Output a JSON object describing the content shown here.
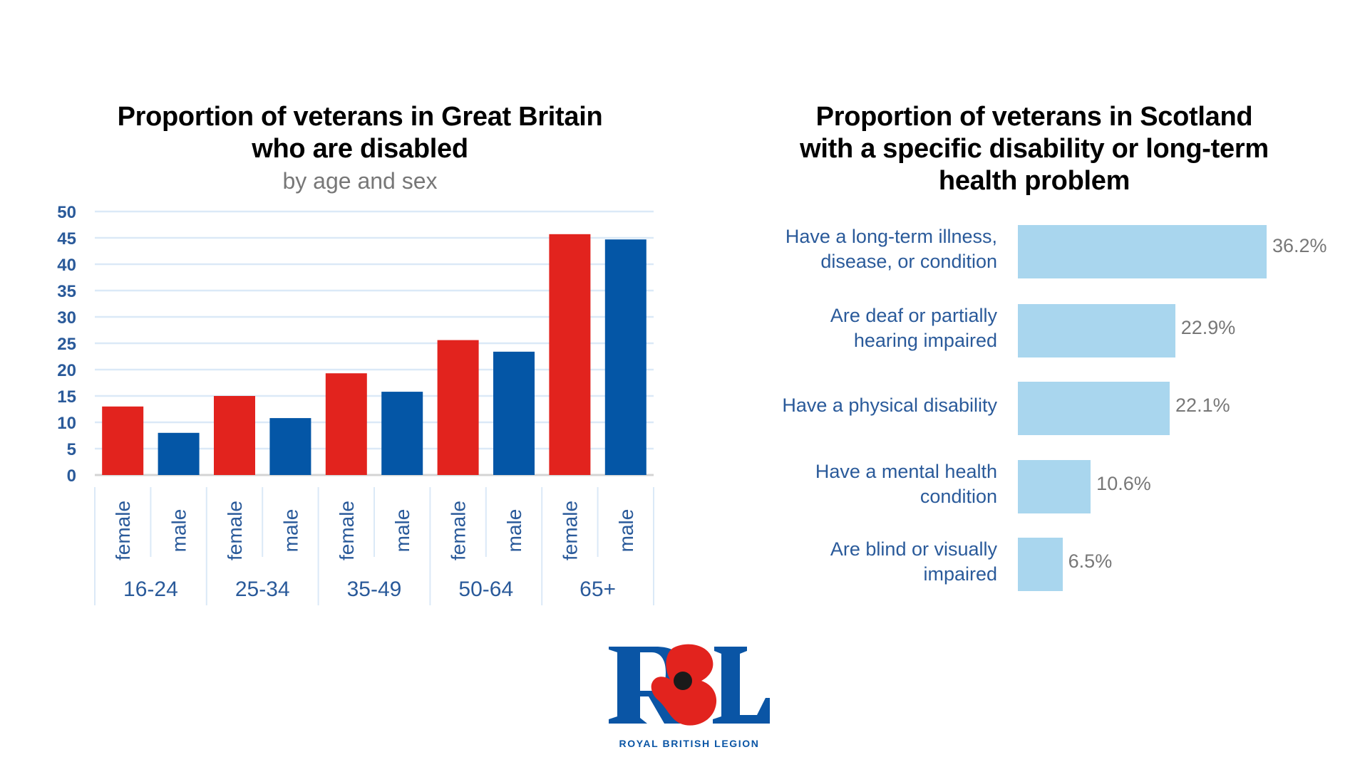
{
  "chart_data": [
    {
      "type": "bar",
      "title": "Proportion of veterans in Great Britain who are disabled",
      "title_lines": [
        "Proportion of veterans in Great Britain",
        "who are disabled"
      ],
      "subtitle": "by age and sex",
      "xlabel": "",
      "ylabel": "",
      "ylim": [
        0,
        50
      ],
      "yticks": [
        0,
        5,
        10,
        15,
        20,
        25,
        30,
        35,
        40,
        45,
        50
      ],
      "grid": true,
      "categories": [
        "16-24",
        "25-34",
        "35-49",
        "50-64",
        "65+"
      ],
      "sub_categories": [
        "female",
        "male"
      ],
      "series": [
        {
          "name": "female",
          "color": "#e2231e",
          "values": [
            13,
            15,
            19.3,
            25.6,
            45.7
          ]
        },
        {
          "name": "male",
          "color": "#0456a6",
          "values": [
            8,
            10.8,
            15.8,
            23.4,
            44.7
          ]
        }
      ]
    },
    {
      "type": "bar",
      "orientation": "horizontal",
      "title": "Proportion of veterans in Scotland with a specific disability or long-term health problem",
      "title_lines": [
        "Proportion of veterans in Scotland",
        "with a specific disability or long-term",
        "health problem"
      ],
      "bar_color": "#a9d6ee",
      "categories": [
        [
          "Have a long-term illness,",
          "disease, or condition"
        ],
        [
          "Are deaf or partially",
          "hearing impaired"
        ],
        [
          "Have a physical disability"
        ],
        [
          "Have a mental health",
          "condition"
        ],
        [
          "Are blind or visually",
          "impaired"
        ]
      ],
      "values": [
        36.2,
        22.9,
        22.1,
        10.6,
        6.5
      ],
      "value_labels": [
        "36.2%",
        "22.9%",
        "22.1%",
        "10.6%",
        "6.5%"
      ],
      "unit": "%"
    }
  ],
  "colors": {
    "axis_text": "#2a5a9a",
    "gridline": "#dbe9f7",
    "female": "#e2231e",
    "male": "#0456a6",
    "scotland_bar": "#a9d6ee"
  },
  "logo": {
    "letters": "RBL",
    "text": "ROYAL BRITISH LEGION"
  }
}
